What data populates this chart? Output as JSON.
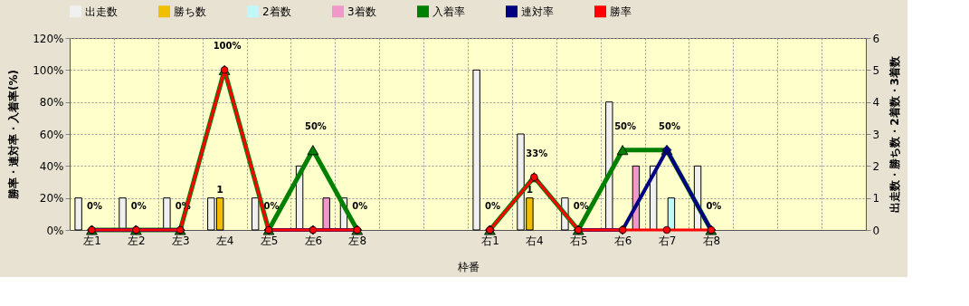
{
  "chart_data": {
    "type": "bar",
    "xlabel": "枠番",
    "ylabel": "勝率・連対率・入着率(%)",
    "y2label": "出走数・勝ち数・2着数・3着数",
    "categories": [
      "左1",
      "左2",
      "左3",
      "左4",
      "左5",
      "左6",
      "左8",
      null,
      null,
      "右1",
      "右4",
      "右5",
      "右6",
      "右7",
      "右8",
      null,
      null,
      null
    ],
    "series": [
      {
        "name": "出走数",
        "type": "bar",
        "axis": "y2",
        "color": "#f0f0f0",
        "values": [
          1,
          1,
          1,
          1,
          1,
          2,
          1,
          null,
          null,
          5,
          3,
          1,
          4,
          2,
          2,
          null,
          null,
          null
        ]
      },
      {
        "name": "勝ち数",
        "type": "bar",
        "axis": "y2",
        "color": "#f0c000",
        "values": [
          0,
          0,
          0,
          1,
          0,
          0,
          0,
          null,
          null,
          0,
          1,
          0,
          0,
          0,
          0,
          null,
          null,
          null
        ],
        "value_labels": [
          null,
          null,
          null,
          "1",
          null,
          null,
          null,
          null,
          null,
          null,
          "1",
          null,
          null,
          null,
          null,
          null,
          null,
          null
        ]
      },
      {
        "name": "2着数",
        "type": "bar",
        "axis": "y2",
        "color": "#c0f8f8",
        "values": [
          0,
          0,
          0,
          0,
          0,
          0,
          0,
          null,
          null,
          0,
          0,
          0,
          0,
          1,
          0,
          null,
          null,
          null
        ]
      },
      {
        "name": "3着数",
        "type": "bar",
        "axis": "y2",
        "color": "#f098c8",
        "values": [
          0,
          0,
          0,
          0,
          0,
          1,
          0,
          null,
          null,
          0,
          0,
          0,
          2,
          0,
          0,
          null,
          null,
          null
        ]
      },
      {
        "name": "入着率",
        "type": "line",
        "marker": "triangle",
        "color": "#008000",
        "values": [
          0,
          0,
          0,
          100,
          0,
          50,
          0,
          null,
          null,
          0,
          33,
          0,
          50,
          50,
          0,
          null,
          null,
          null
        ],
        "value_labels": [
          "0%",
          "0%",
          "0%",
          "100%",
          "0%",
          "50%",
          "0%",
          null,
          null,
          "0%",
          "33%",
          "0%",
          "50%",
          "50%",
          "0%",
          null,
          null,
          null
        ]
      },
      {
        "name": "連対率",
        "type": "line",
        "marker": "diamond",
        "color": "#000080",
        "values": [
          0,
          0,
          0,
          null,
          0,
          0,
          0,
          null,
          null,
          0,
          null,
          0,
          0,
          50,
          0,
          null,
          null,
          null
        ]
      },
      {
        "name": "勝率",
        "type": "line",
        "marker": "circle",
        "color": "#ff0000",
        "values": [
          0,
          0,
          0,
          100,
          0,
          0,
          0,
          null,
          null,
          0,
          33,
          0,
          0,
          0,
          0,
          null,
          null,
          null
        ]
      }
    ],
    "ylim": [
      0,
      120
    ],
    "yticks": [
      {
        "value": 0,
        "label": "0%"
      },
      {
        "value": 20,
        "label": "20%"
      },
      {
        "value": 40,
        "label": "40%"
      },
      {
        "value": 60,
        "label": "60%"
      },
      {
        "value": 80,
        "label": "80%"
      },
      {
        "value": 100,
        "label": "100%"
      },
      {
        "value": 120,
        "label": "120%"
      }
    ],
    "y2lim": [
      0,
      6
    ],
    "y2ticks": [
      0,
      1,
      2,
      3,
      4,
      5,
      6
    ],
    "grid": true,
    "legend": "top"
  }
}
